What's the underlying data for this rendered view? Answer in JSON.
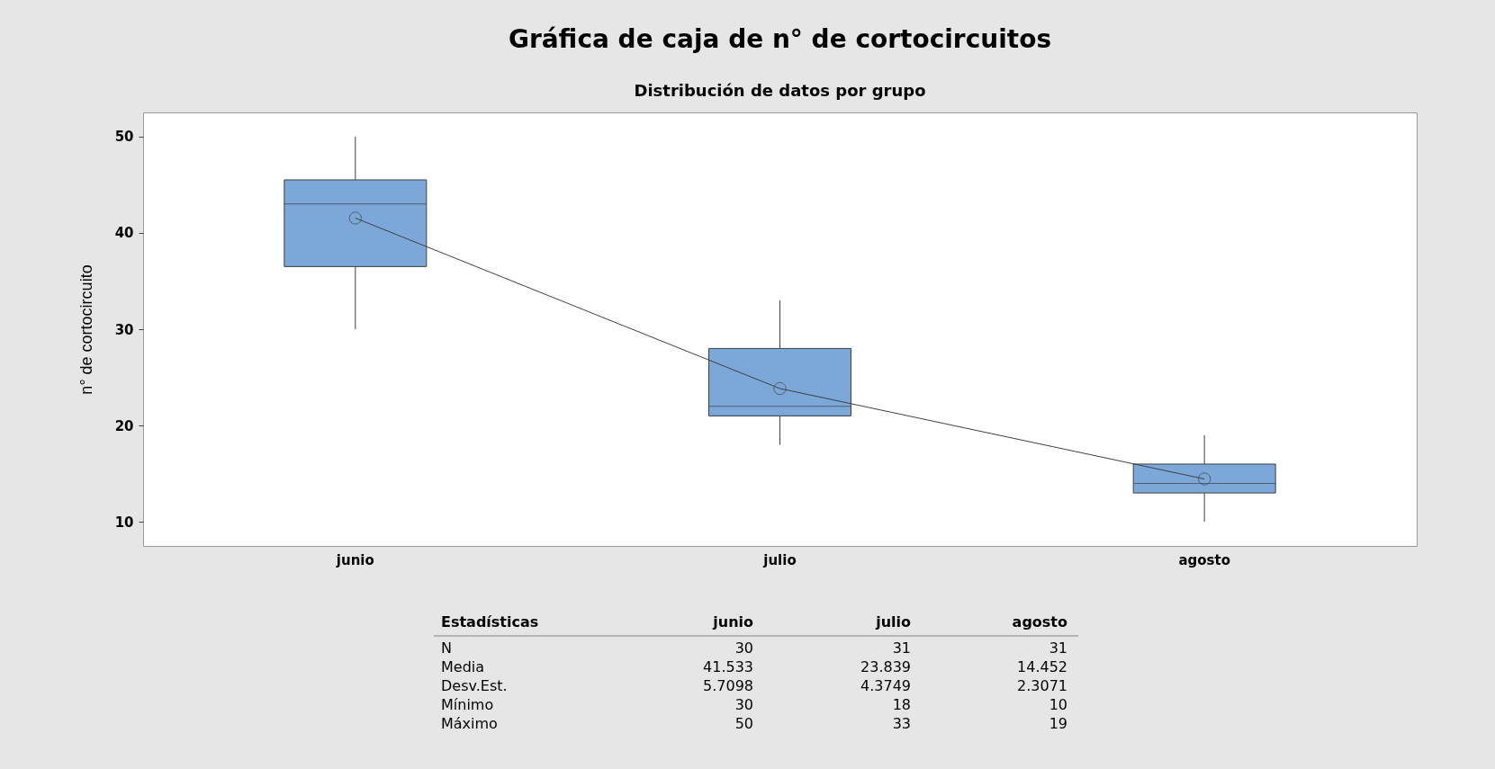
{
  "chart_data": {
    "type": "box",
    "title": "Gráfica de caja de n° de cortocircuitos",
    "subtitle": "Distribución de datos por grupo",
    "ylabel": "n° de cortocircuito",
    "categories": [
      "junio",
      "julio",
      "agosto"
    ],
    "series": [
      {
        "type": "box",
        "color": "#7ba7d9",
        "boxes": [
          {
            "low": 30,
            "q1": 36.5,
            "median": 43,
            "q3": 45.5,
            "high": 50
          },
          {
            "low": 18,
            "q1": 21,
            "median": 22,
            "q3": 28,
            "high": 33
          },
          {
            "low": 10,
            "q1": 13,
            "median": 14,
            "q3": 16,
            "high": 19
          }
        ]
      },
      {
        "type": "line",
        "color": "#404040",
        "marker": "circle",
        "values": [
          41.533,
          23.839,
          14.452
        ]
      }
    ],
    "ylim": [
      7.5,
      52.5
    ],
    "yticks": [
      10,
      20,
      30,
      40,
      50
    ],
    "grid": false,
    "annotations": [
      "Estadísticas",
      "junio",
      "julio",
      "agosto",
      "N",
      "30",
      "31",
      "31",
      "Media",
      "41.533",
      "23.839",
      "14.452",
      "Desv.Est.",
      "5.7098",
      "4.3749",
      "2.3071",
      "Mínimo",
      "30",
      "18",
      "10",
      "Máximo",
      "50",
      "33",
      "19"
    ]
  }
}
